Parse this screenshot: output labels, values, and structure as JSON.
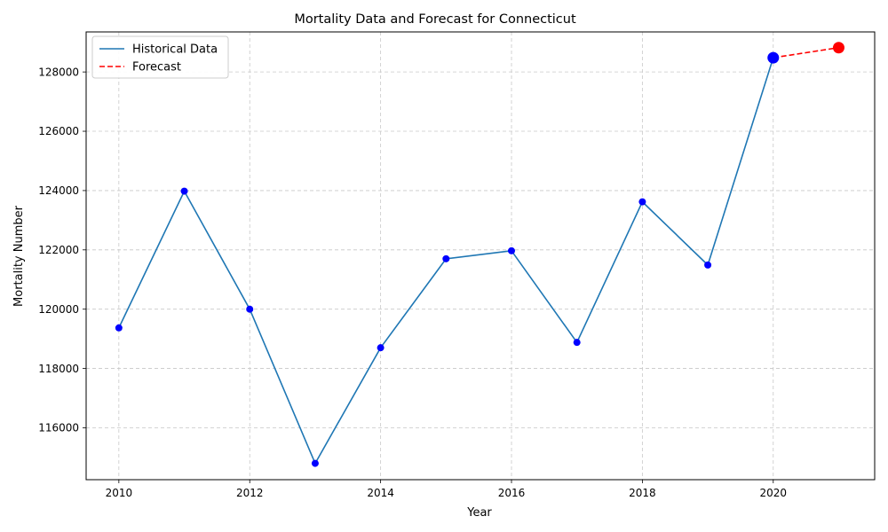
{
  "chart_data": {
    "type": "line",
    "title": "Mortality Data and Forecast for Connecticut",
    "xlabel": "Year",
    "ylabel": "Mortality Number",
    "xlim": [
      2009.5,
      2021.55
    ],
    "ylim": [
      114250,
      129350
    ],
    "xticks": [
      2010,
      2012,
      2014,
      2016,
      2018,
      2020
    ],
    "yticks": [
      116000,
      118000,
      120000,
      122000,
      124000,
      126000,
      128000
    ],
    "grid": true,
    "legend_position": "top-left",
    "series": [
      {
        "name": "Historical Data",
        "color": "#1f77b4",
        "style": "solid",
        "x": [
          2010,
          2011,
          2012,
          2013,
          2014,
          2015,
          2016,
          2017,
          2018,
          2019,
          2020
        ],
        "y": [
          119370,
          123980,
          120000,
          114800,
          118700,
          121700,
          121970,
          118880,
          123620,
          121490,
          128480
        ]
      },
      {
        "name": "Forecast",
        "color": "#ff0000",
        "style": "dashed",
        "x": [
          2020,
          2021
        ],
        "y": [
          128480,
          128820
        ]
      }
    ],
    "markers": {
      "historical_color": "#0000ff",
      "forecast_color": "#ff0000"
    }
  }
}
